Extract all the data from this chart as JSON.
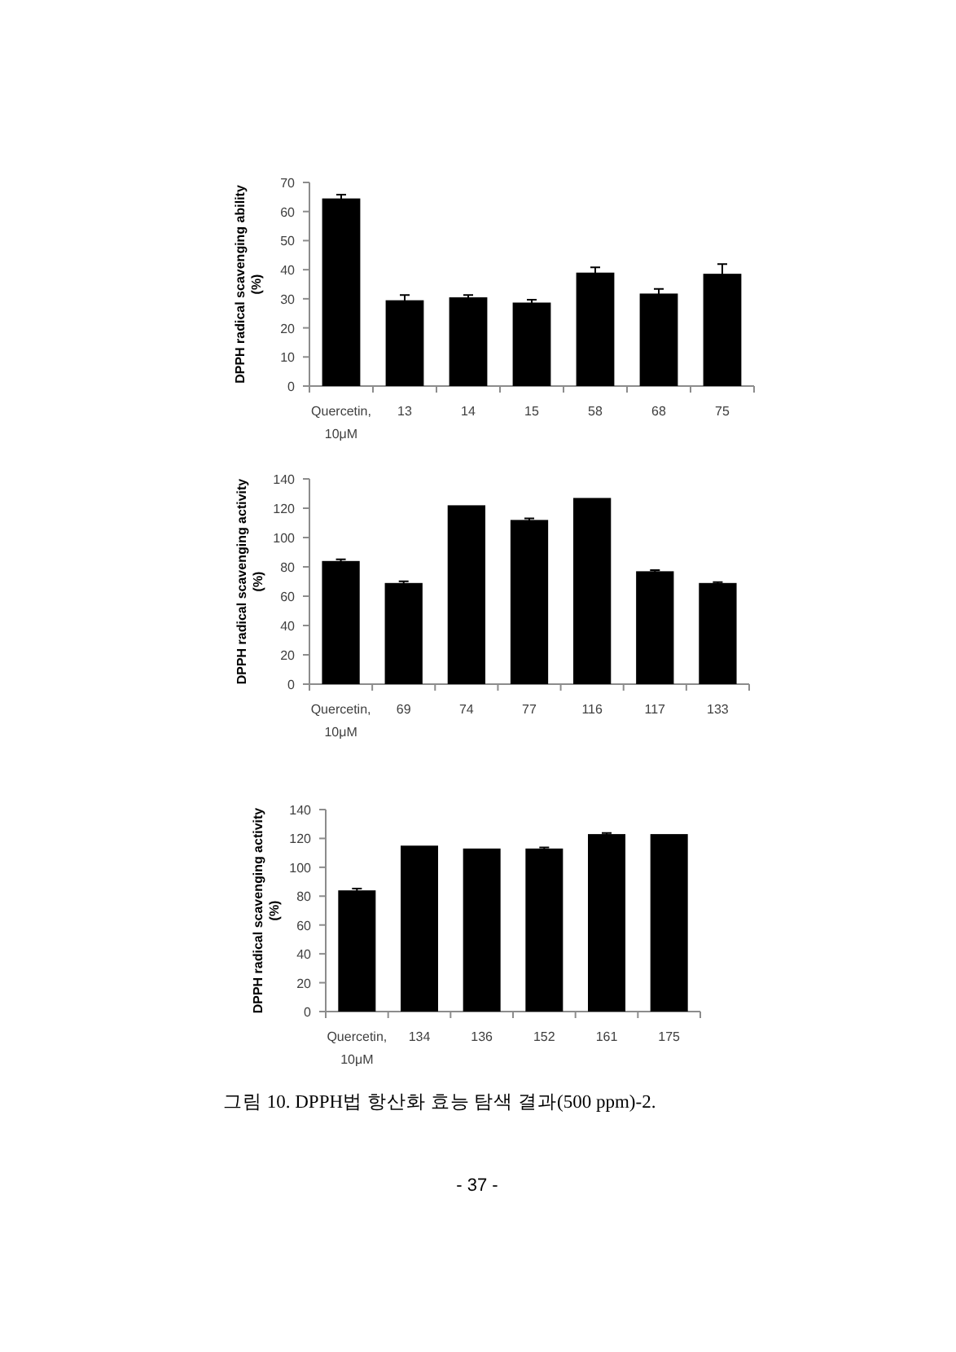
{
  "chart_data": [
    {
      "type": "bar",
      "ylabel": "DPPH radical scavenging ability (%)",
      "categories": [
        "Quercetin, 10μM",
        "13",
        "14",
        "15",
        "58",
        "68",
        "75"
      ],
      "values": [
        64.5,
        29.5,
        30.5,
        28.7,
        39,
        31.8,
        38.6
      ],
      "errors": [
        1.3,
        1.8,
        0.8,
        1,
        1.8,
        1.6,
        3.3
      ],
      "color": "#000000",
      "ylim": [
        0,
        70
      ],
      "yticks": [
        0,
        10,
        20,
        30,
        40,
        50,
        60,
        70
      ]
    },
    {
      "type": "bar",
      "ylabel": "DPPH radical scavenging activity (%)",
      "categories": [
        "Quercetin, 10μM",
        "69",
        "74",
        "77",
        "116",
        "117",
        "133"
      ],
      "values": [
        84,
        69,
        122,
        112,
        127,
        77,
        69
      ],
      "errors": [
        1.2,
        1.2,
        null,
        1,
        null,
        0.8,
        0.6
      ],
      "color": "#000000",
      "ylim": [
        0,
        140
      ],
      "yticks": [
        0,
        20,
        40,
        60,
        80,
        100,
        120,
        140
      ]
    },
    {
      "type": "bar",
      "ylabel": "DPPH radical scavenging activity (%)",
      "categories": [
        "Quercetin, 10μM",
        "134",
        "136",
        "152",
        "161",
        "175"
      ],
      "values": [
        84,
        115,
        113,
        113,
        123,
        123
      ],
      "errors": [
        1.2,
        null,
        null,
        0.8,
        0.8,
        null
      ],
      "color": "#000000",
      "ylim": [
        0,
        140
      ],
      "yticks": [
        0,
        20,
        40,
        60,
        80,
        100,
        120,
        140
      ],
      "annotations": [
        "그림 10. DPPH법 항산화 효능 탐색 결과(500 ppm)-2.",
        "- 37 -"
      ]
    }
  ]
}
